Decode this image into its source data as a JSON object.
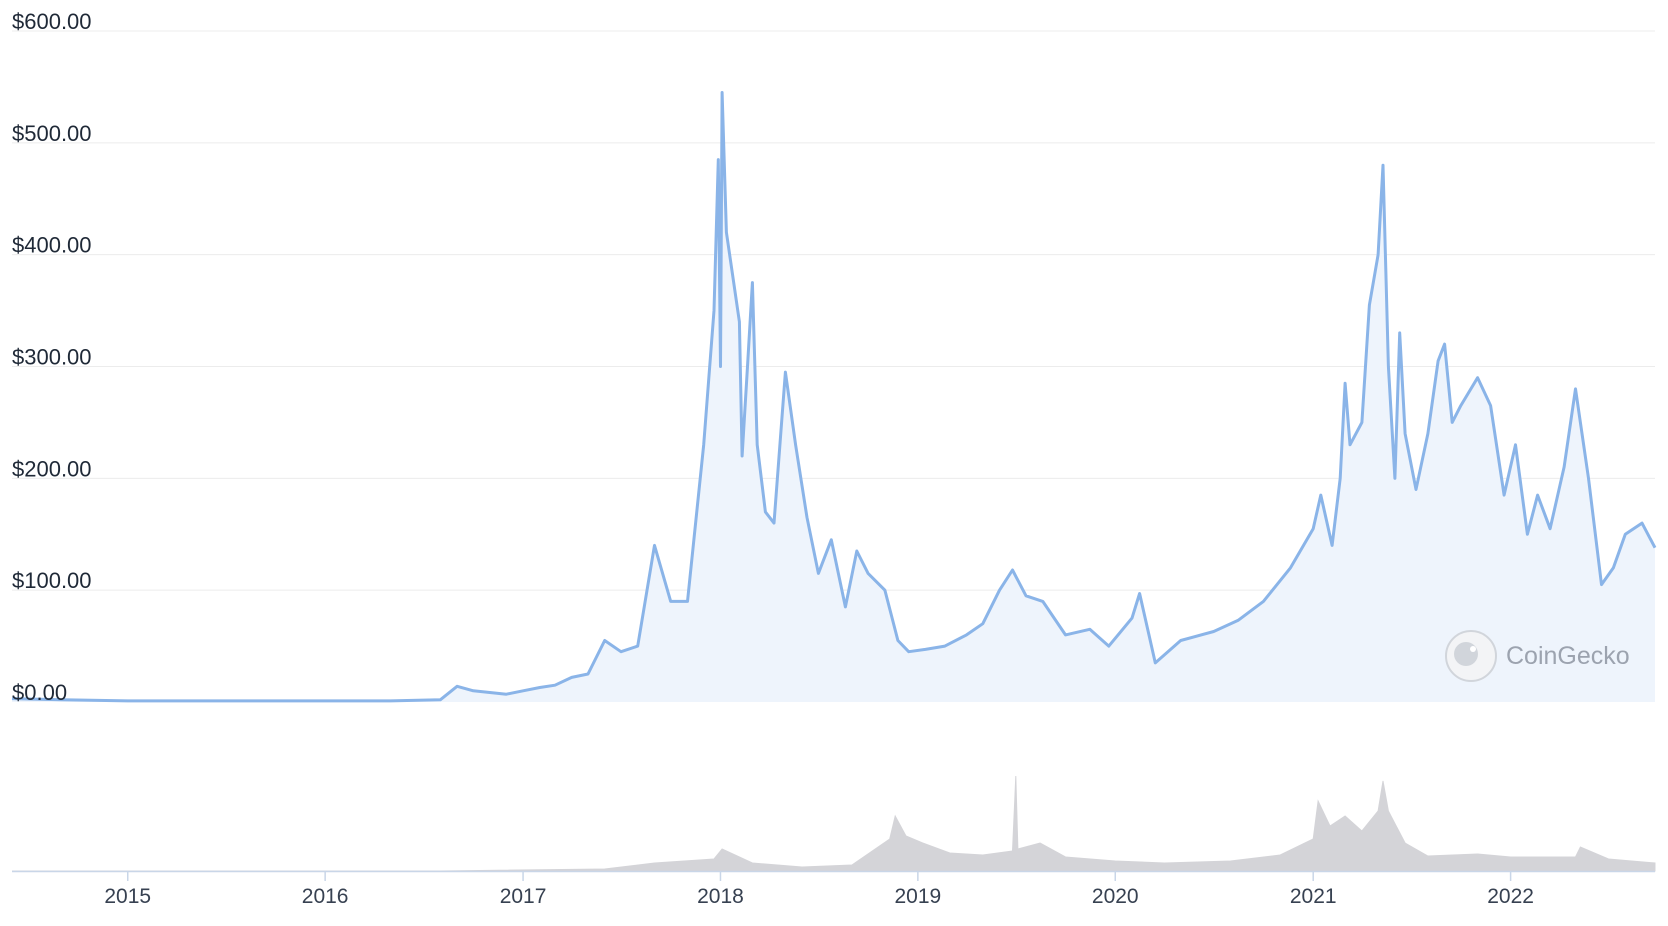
{
  "chart_data": {
    "type": "area",
    "title": "",
    "xlabel": "",
    "ylabel": "",
    "x_range": [
      "2014-06-01",
      "2022-09-25"
    ],
    "ylim": [
      0,
      600
    ],
    "y_ticks": [
      0,
      100,
      200,
      300,
      400,
      500,
      600
    ],
    "y_tick_labels": [
      "$0.00",
      "$100.00",
      "$200.00",
      "$300.00",
      "$400.00",
      "$500.00",
      "$600.00"
    ],
    "x_ticks": [
      "2015-01-01",
      "2016-01-01",
      "2017-01-01",
      "2018-01-01",
      "2019-01-01",
      "2020-01-01",
      "2021-01-01",
      "2022-01-01"
    ],
    "x_tick_labels": [
      "2015",
      "2016",
      "2017",
      "2018",
      "2019",
      "2020",
      "2021",
      "2022"
    ],
    "grid": true,
    "legend": "none",
    "colors": {
      "line": "#8ab4e8",
      "fill": "#eef4fc",
      "volume": "#d4d4d8",
      "grid": "#ececec",
      "axis": "#c9d6e8"
    },
    "series": [
      {
        "values": [
          [
            "2014-06-01",
            3
          ],
          [
            "2014-09-01",
            2
          ],
          [
            "2015-01-01",
            1
          ],
          [
            "2015-06-01",
            1
          ],
          [
            "2016-01-01",
            1
          ],
          [
            "2016-05-01",
            1
          ],
          [
            "2016-08-01",
            2
          ],
          [
            "2016-09-01",
            14
          ],
          [
            "2016-10-01",
            10
          ],
          [
            "2016-12-01",
            7
          ],
          [
            "2017-01-01",
            10
          ],
          [
            "2017-02-01",
            13
          ],
          [
            "2017-03-01",
            15
          ],
          [
            "2017-04-01",
            22
          ],
          [
            "2017-05-01",
            25
          ],
          [
            "2017-06-01",
            55
          ],
          [
            "2017-07-01",
            45
          ],
          [
            "2017-08-01",
            50
          ],
          [
            "2017-09-01",
            140
          ],
          [
            "2017-10-01",
            90
          ],
          [
            "2017-11-01",
            90
          ],
          [
            "2017-12-01",
            230
          ],
          [
            "2017-12-20",
            350
          ],
          [
            "2017-12-28",
            485
          ],
          [
            "2018-01-01",
            300
          ],
          [
            "2018-01-04",
            545
          ],
          [
            "2018-01-12",
            420
          ],
          [
            "2018-02-05",
            340
          ],
          [
            "2018-02-10",
            220
          ],
          [
            "2018-02-20",
            300
          ],
          [
            "2018-03-01",
            375
          ],
          [
            "2018-03-10",
            230
          ],
          [
            "2018-03-25",
            170
          ],
          [
            "2018-04-10",
            160
          ],
          [
            "2018-05-01",
            295
          ],
          [
            "2018-05-20",
            230
          ],
          [
            "2018-06-10",
            165
          ],
          [
            "2018-07-01",
            115
          ],
          [
            "2018-07-25",
            145
          ],
          [
            "2018-08-20",
            85
          ],
          [
            "2018-09-10",
            135
          ],
          [
            "2018-10-01",
            115
          ],
          [
            "2018-11-01",
            100
          ],
          [
            "2018-11-25",
            55
          ],
          [
            "2018-12-15",
            45
          ],
          [
            "2019-01-15",
            47
          ],
          [
            "2019-02-20",
            50
          ],
          [
            "2019-04-01",
            60
          ],
          [
            "2019-05-01",
            70
          ],
          [
            "2019-06-01",
            100
          ],
          [
            "2019-06-25",
            118
          ],
          [
            "2019-07-20",
            95
          ],
          [
            "2019-08-20",
            90
          ],
          [
            "2019-10-01",
            60
          ],
          [
            "2019-11-15",
            65
          ],
          [
            "2019-12-20",
            50
          ],
          [
            "2020-02-01",
            75
          ],
          [
            "2020-02-15",
            97
          ],
          [
            "2020-03-15",
            35
          ],
          [
            "2020-05-01",
            55
          ],
          [
            "2020-07-01",
            63
          ],
          [
            "2020-08-15",
            73
          ],
          [
            "2020-10-01",
            90
          ],
          [
            "2020-11-20",
            120
          ],
          [
            "2021-01-01",
            155
          ],
          [
            "2021-01-15",
            185
          ],
          [
            "2021-02-05",
            140
          ],
          [
            "2021-02-20",
            200
          ],
          [
            "2021-03-01",
            285
          ],
          [
            "2021-03-10",
            230
          ],
          [
            "2021-04-01",
            250
          ],
          [
            "2021-04-15",
            355
          ],
          [
            "2021-05-01",
            400
          ],
          [
            "2021-05-10",
            480
          ],
          [
            "2021-05-20",
            300
          ],
          [
            "2021-06-01",
            200
          ],
          [
            "2021-06-10",
            330
          ],
          [
            "2021-06-20",
            240
          ],
          [
            "2021-07-10",
            190
          ],
          [
            "2021-08-01",
            240
          ],
          [
            "2021-08-20",
            305
          ],
          [
            "2021-09-01",
            320
          ],
          [
            "2021-09-15",
            250
          ],
          [
            "2021-10-01",
            265
          ],
          [
            "2021-11-01",
            290
          ],
          [
            "2021-11-25",
            265
          ],
          [
            "2021-12-20",
            185
          ],
          [
            "2022-01-10",
            230
          ],
          [
            "2022-02-01",
            150
          ],
          [
            "2022-02-20",
            185
          ],
          [
            "2022-03-15",
            155
          ],
          [
            "2022-04-10",
            210
          ],
          [
            "2022-05-01",
            280
          ],
          [
            "2022-05-25",
            200
          ],
          [
            "2022-06-18",
            105
          ],
          [
            "2022-07-10",
            120
          ],
          [
            "2022-08-01",
            150
          ],
          [
            "2022-09-01",
            160
          ],
          [
            "2022-09-25",
            138
          ]
        ]
      },
      {
        "values": [
          [
            "2014-06-01",
            0
          ],
          [
            "2016-08-01",
            0
          ],
          [
            "2017-06-01",
            2
          ],
          [
            "2017-09-01",
            8
          ],
          [
            "2017-12-20",
            12
          ],
          [
            "2018-01-04",
            22
          ],
          [
            "2018-03-01",
            8
          ],
          [
            "2018-06-01",
            4
          ],
          [
            "2018-09-01",
            6
          ],
          [
            "2018-11-10",
            32
          ],
          [
            "2018-11-20",
            55
          ],
          [
            "2018-12-10",
            35
          ],
          [
            "2019-01-10",
            28
          ],
          [
            "2019-03-01",
            18
          ],
          [
            "2019-05-01",
            16
          ],
          [
            "2019-06-25",
            20
          ],
          [
            "2019-07-01",
            95
          ],
          [
            "2019-07-05",
            22
          ],
          [
            "2019-08-15",
            28
          ],
          [
            "2019-10-01",
            14
          ],
          [
            "2020-01-01",
            10
          ],
          [
            "2020-04-01",
            8
          ],
          [
            "2020-08-01",
            10
          ],
          [
            "2020-11-01",
            16
          ],
          [
            "2021-01-01",
            32
          ],
          [
            "2021-01-10",
            70
          ],
          [
            "2021-02-01",
            45
          ],
          [
            "2021-03-01",
            55
          ],
          [
            "2021-04-01",
            40
          ],
          [
            "2021-05-01",
            60
          ],
          [
            "2021-05-10",
            90
          ],
          [
            "2021-05-20",
            60
          ],
          [
            "2021-06-20",
            28
          ],
          [
            "2021-08-01",
            15
          ],
          [
            "2021-11-01",
            17
          ],
          [
            "2022-01-01",
            14
          ],
          [
            "2022-05-01",
            14
          ],
          [
            "2022-05-10",
            24
          ],
          [
            "2022-07-01",
            12
          ],
          [
            "2022-09-25",
            8
          ]
        ]
      }
    ],
    "watermark": "CoinGecko"
  }
}
